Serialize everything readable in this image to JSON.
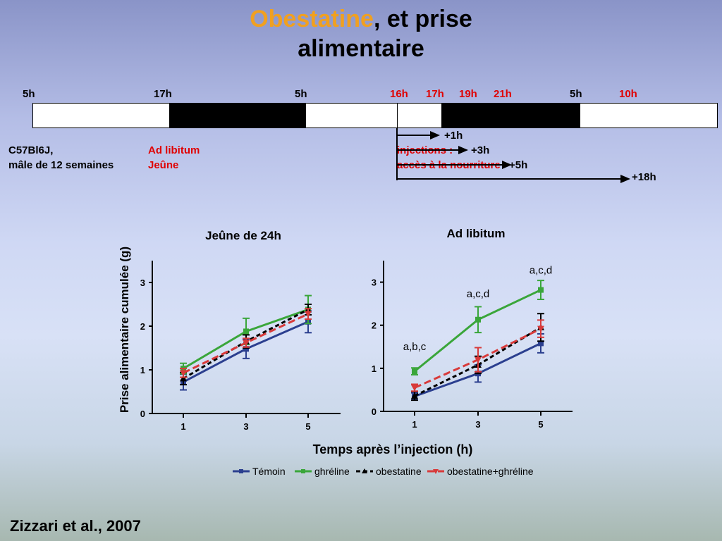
{
  "title": {
    "highlight": "Obestatine",
    "rest_line1": ", et prise",
    "line2": "alimentaire"
  },
  "timeline": {
    "labels": [
      {
        "text": "5h",
        "color": "black"
      },
      {
        "text": "17h",
        "color": "black"
      },
      {
        "text": "5h",
        "color": "black"
      },
      {
        "text": "16h",
        "color": "red"
      },
      {
        "text": "17h",
        "color": "red"
      },
      {
        "text": "19h",
        "color": "red"
      },
      {
        "text": "21h",
        "color": "red"
      },
      {
        "text": "5h",
        "color": "black"
      },
      {
        "text": "10h",
        "color": "red"
      }
    ],
    "arrows": [
      {
        "label": "+1h"
      },
      {
        "label": "+3h"
      },
      {
        "label": "+5h"
      },
      {
        "label": "+18h"
      }
    ]
  },
  "subjects": {
    "line1": "C57Bl6J,",
    "line2": "mâle de 12 semaines"
  },
  "conditions": {
    "ad_libitum": "Ad libitum",
    "jeune": "Jeûne"
  },
  "protocol": {
    "injections": "injections :",
    "acces": "accès à la nourriture"
  },
  "reference": "Zizzari et al., 2007",
  "colors": {
    "temoin": "#2b3f8f",
    "ghreline": "#3aa63a",
    "obestatine": "#000000",
    "obestatine_ghreline": "#d83a3a",
    "title_highlight": "#f0a020"
  },
  "chart_data": [
    {
      "type": "line",
      "title": "Jeûne de 24h",
      "ylabel": "Prise alimentaire cumulée (g)",
      "xlabel": "Temps après l’injection (h)",
      "x": [
        1,
        3,
        5
      ],
      "ylim": [
        0,
        3.5
      ],
      "yticks": [
        0,
        1,
        2,
        3
      ],
      "series": [
        {
          "name": "Témoin",
          "values": [
            0.72,
            1.48,
            2.1
          ],
          "errors": [
            0.18,
            0.22,
            0.25
          ],
          "color": "#2b3f8f",
          "dash": "",
          "marker": "square"
        },
        {
          "name": "ghréline",
          "values": [
            1.03,
            1.88,
            2.38
          ],
          "errors": [
            0.12,
            0.3,
            0.32
          ],
          "color": "#3aa63a",
          "dash": "",
          "marker": "square"
        },
        {
          "name": "obestatine",
          "values": [
            0.8,
            1.65,
            2.38
          ],
          "errors": [
            0.14,
            0.15,
            0.12
          ],
          "color": "#000000",
          "dash": "6,4",
          "marker": "triangle-up"
        },
        {
          "name": "obestatine+ghréline",
          "values": [
            0.93,
            1.62,
            2.28
          ],
          "errors": [
            0.1,
            0.1,
            0.12
          ],
          "color": "#d83a3a",
          "dash": "10,5",
          "marker": "triangle-down"
        }
      ],
      "annotations": []
    },
    {
      "type": "line",
      "title": "Ad libitum",
      "ylabel": "",
      "xlabel": "",
      "x": [
        1,
        3,
        5
      ],
      "ylim": [
        0,
        3.5
      ],
      "yticks": [
        0,
        1,
        2,
        3
      ],
      "series": [
        {
          "name": "Témoin",
          "values": [
            0.35,
            0.88,
            1.58
          ],
          "errors": [
            0.08,
            0.2,
            0.22
          ],
          "color": "#2b3f8f",
          "dash": "",
          "marker": "square"
        },
        {
          "name": "ghréline",
          "values": [
            0.93,
            2.13,
            2.82
          ],
          "errors": [
            0.08,
            0.3,
            0.22
          ],
          "color": "#3aa63a",
          "dash": "",
          "marker": "square"
        },
        {
          "name": "obestatine",
          "values": [
            0.36,
            1.08,
            1.95
          ],
          "errors": [
            0.1,
            0.2,
            0.32
          ],
          "color": "#000000",
          "dash": "6,4",
          "marker": "triangle-up"
        },
        {
          "name": "obestatine+ghréline",
          "values": [
            0.55,
            1.2,
            1.92
          ],
          "errors": [
            0.08,
            0.28,
            0.2
          ],
          "color": "#d83a3a",
          "dash": "10,5",
          "marker": "triangle-down"
        }
      ],
      "annotations": [
        {
          "text": "a,b,c",
          "x": 1,
          "y": 1.42
        },
        {
          "text": "a,c,d",
          "x": 3,
          "y": 2.65
        },
        {
          "text": "a,c,d",
          "x": 5,
          "y": 3.2
        }
      ]
    }
  ]
}
